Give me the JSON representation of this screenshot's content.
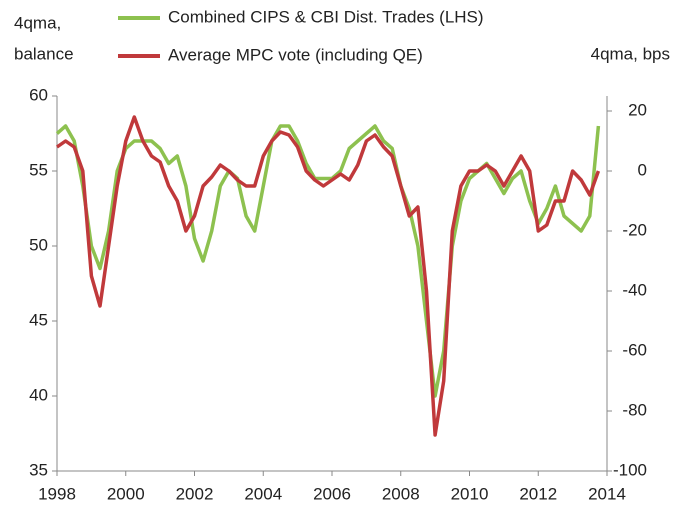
{
  "chart_data": {
    "type": "line",
    "y_label": [
      "4qma,",
      "balance"
    ],
    "y2_label": "4qma, bps",
    "x": [
      1998,
      1998.25,
      1998.5,
      1998.75,
      1999,
      1999.25,
      1999.5,
      1999.75,
      2000,
      2000.25,
      2000.5,
      2000.75,
      2001,
      2001.25,
      2001.5,
      2001.75,
      2002,
      2002.25,
      2002.5,
      2002.75,
      2003,
      2003.25,
      2003.5,
      2003.75,
      2004,
      2004.25,
      2004.5,
      2004.75,
      2005,
      2005.25,
      2005.5,
      2005.75,
      2006,
      2006.25,
      2006.5,
      2006.75,
      2007,
      2007.25,
      2007.5,
      2007.75,
      2008,
      2008.25,
      2008.5,
      2008.75,
      2009,
      2009.25,
      2009.5,
      2009.75,
      2010,
      2010.25,
      2010.5,
      2010.75,
      2011,
      2011.25,
      2011.5,
      2011.75,
      2012,
      2012.25,
      2012.5,
      2012.75,
      2013,
      2013.25,
      2013.5,
      2013.75
    ],
    "series": [
      {
        "name": "Combined CIPS & CBI Dist. Trades (LHS)",
        "color": "#8dc14f",
        "axis": "y",
        "values": [
          57.5,
          58,
          57,
          54,
          50,
          48.5,
          51,
          55,
          56.5,
          57,
          57,
          57,
          56.5,
          55.5,
          56,
          54,
          50.5,
          49,
          51,
          54,
          55,
          54.5,
          52,
          51,
          54,
          57,
          58,
          58,
          57,
          55.5,
          54.5,
          54.5,
          54.5,
          55,
          56.5,
          57,
          57.5,
          58,
          57,
          56.5,
          54,
          52.5,
          50,
          45,
          40,
          43,
          50,
          53,
          54.5,
          55,
          55.5,
          54.5,
          53.5,
          54.5,
          55,
          53,
          51.5,
          52.5,
          54,
          52,
          51.5,
          51,
          52,
          58
        ]
      },
      {
        "name": "Average MPC vote (including QE)",
        "color": "#c0393b",
        "axis": "y2",
        "values": [
          8,
          10,
          8,
          0,
          -35,
          -45,
          -25,
          -5,
          10,
          18,
          10,
          5,
          3,
          -5,
          -10,
          -20,
          -15,
          -5,
          -2,
          2,
          0,
          -3,
          -5,
          -5,
          5,
          10,
          13,
          12,
          8,
          0,
          -3,
          -5,
          -3,
          -1,
          -3,
          2,
          10,
          12,
          8,
          5,
          -5,
          -15,
          -12,
          -40,
          -88,
          -70,
          -20,
          -5,
          0,
          0,
          2,
          0,
          -5,
          0,
          5,
          0,
          -20,
          -18,
          -10,
          -10,
          0,
          -3,
          -8,
          0
        ]
      }
    ],
    "xlim": [
      1998,
      2014
    ],
    "xticks": [
      1998,
      2000,
      2002,
      2004,
      2006,
      2008,
      2010,
      2012,
      2014
    ],
    "ylim": [
      35,
      60
    ],
    "yticks": [
      35,
      40,
      45,
      50,
      55,
      60
    ],
    "y2lim": [
      -100,
      25
    ],
    "y2ticks": [
      -100,
      -80,
      -60,
      -40,
      -20,
      0,
      20
    ],
    "grid": false
  }
}
